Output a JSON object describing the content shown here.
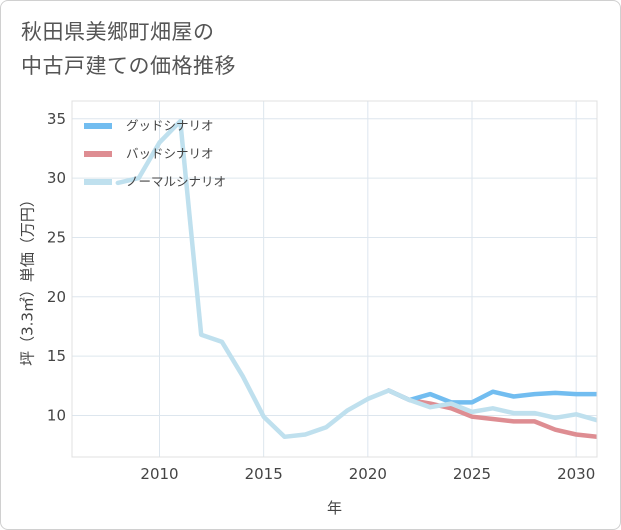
{
  "title": {
    "line1": "秋田県美郷町畑屋の",
    "line2": "中古戸建ての価格推移"
  },
  "chart_data": {
    "type": "line",
    "xlabel": "年",
    "ylabel": "坪（3.3㎡）単価（万円）",
    "xlim": [
      2005.8,
      2031
    ],
    "ylim": [
      6.5,
      36.5
    ],
    "x_ticks": [
      2010,
      2015,
      2020,
      2025,
      2030
    ],
    "y_ticks": [
      10,
      15,
      20,
      25,
      30,
      35
    ],
    "grid": true,
    "legend_position": "top-left",
    "series": [
      {
        "name": "グッドシナリオ",
        "color": "#72bdf0",
        "x": [
          2021,
          2022,
          2023,
          2024,
          2025,
          2026,
          2027,
          2028,
          2029,
          2030,
          2031
        ],
        "values": [
          12.1,
          11.3,
          11.8,
          11.1,
          11.1,
          12.0,
          11.6,
          11.8,
          11.9,
          11.8,
          11.8
        ]
      },
      {
        "name": "バッドシナリオ",
        "color": "#de8d92",
        "x": [
          2021,
          2022,
          2023,
          2024,
          2025,
          2026,
          2027,
          2028,
          2029,
          2030,
          2031
        ],
        "values": [
          12.1,
          11.3,
          11.0,
          10.6,
          9.9,
          9.7,
          9.5,
          9.5,
          8.8,
          8.4,
          8.2
        ]
      },
      {
        "name": "ノーマルシナリオ",
        "color": "#bfe0ee",
        "x": [
          2008,
          2009,
          2010,
          2011,
          2012,
          2013,
          2014,
          2015,
          2016,
          2017,
          2018,
          2019,
          2020,
          2021,
          2022,
          2023,
          2024,
          2025,
          2026,
          2027,
          2028,
          2029,
          2030,
          2031
        ],
        "values": [
          29.6,
          30.0,
          33.0,
          34.8,
          16.8,
          16.2,
          13.3,
          9.9,
          8.2,
          8.4,
          9.0,
          10.4,
          11.4,
          12.1,
          11.3,
          10.7,
          11.0,
          10.3,
          10.6,
          10.2,
          10.2,
          9.8,
          10.1,
          9.6
        ]
      }
    ]
  }
}
